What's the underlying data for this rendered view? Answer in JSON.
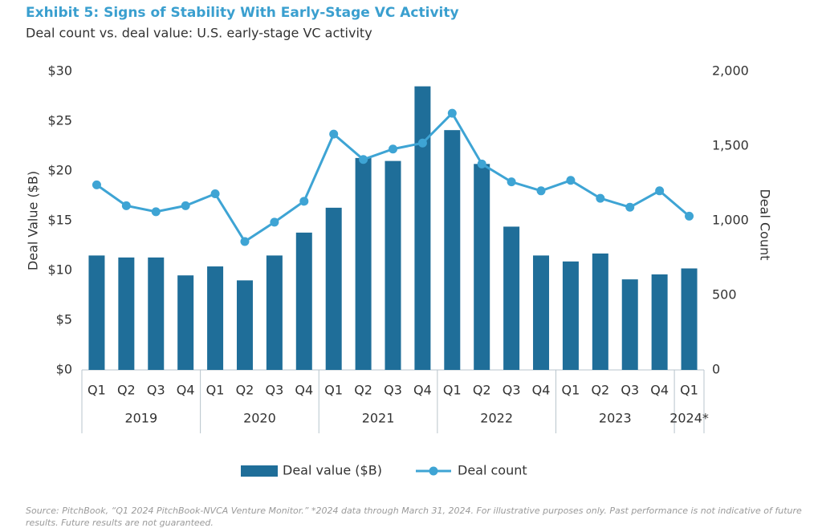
{
  "chart_data": {
    "type": "bar",
    "title": "Exhibit 5: Signs of Stability With Early-Stage VC Activity",
    "subtitle": "Deal count vs. deal value: U.S. early-stage VC activity",
    "y_label": "Deal Value ($B)",
    "y2_label": "Deal Count",
    "groups": [
      {
        "name": "2019",
        "categories": [
          "Q1",
          "Q2",
          "Q3",
          "Q4"
        ]
      },
      {
        "name": "2020",
        "categories": [
          "Q1",
          "Q2",
          "Q3",
          "Q4"
        ]
      },
      {
        "name": "2021",
        "categories": [
          "Q1",
          "Q2",
          "Q3",
          "Q4"
        ]
      },
      {
        "name": "2022",
        "categories": [
          "Q1",
          "Q2",
          "Q3",
          "Q4"
        ]
      },
      {
        "name": "2023",
        "categories": [
          "Q1",
          "Q2",
          "Q3",
          "Q4"
        ]
      },
      {
        "name": "2024*",
        "categories": [
          "Q1"
        ]
      }
    ],
    "series": [
      {
        "name": "Deal value ($B)",
        "type": "bar",
        "color": "#1f6e99",
        "values": [
          11.5,
          11.3,
          11.3,
          9.5,
          10.4,
          9.0,
          11.5,
          13.8,
          16.3,
          21.3,
          21.0,
          28.5,
          24.1,
          20.7,
          14.4,
          11.5,
          10.9,
          11.7,
          9.1,
          9.6,
          10.2
        ]
      },
      {
        "name": "Deal count",
        "type": "line",
        "axis": "y2",
        "color": "#3ea4d4",
        "values": [
          1240,
          1100,
          1060,
          1100,
          1180,
          860,
          990,
          1130,
          1580,
          1410,
          1480,
          1520,
          1720,
          1380,
          1260,
          1200,
          1270,
          1150,
          1090,
          1200,
          1030
        ]
      }
    ],
    "ylim": [
      0,
      30
    ],
    "yticks": [
      {
        "value": 0,
        "label": "$0"
      },
      {
        "value": 5,
        "label": "$5"
      },
      {
        "value": 10,
        "label": "$10"
      },
      {
        "value": 15,
        "label": "$15"
      },
      {
        "value": 20,
        "label": "$20"
      },
      {
        "value": 25,
        "label": "$25"
      },
      {
        "value": 30,
        "label": "$30"
      }
    ],
    "y2lim": [
      0,
      2000
    ],
    "y2ticks": [
      0,
      500,
      {
        "value": 1000,
        "label": "1,000"
      },
      {
        "value": 1500,
        "label": "1,500"
      },
      {
        "value": 2000,
        "label": "2,000"
      }
    ],
    "grid": false,
    "legend": "bottom",
    "source": "Source: PitchBook, “Q1 2024 PitchBook-NVCA Venture Monitor.” *2024 data through March 31, 2024. For illustrative purposes only. Past performance is not indicative of future results. Future results are not guaranteed."
  }
}
